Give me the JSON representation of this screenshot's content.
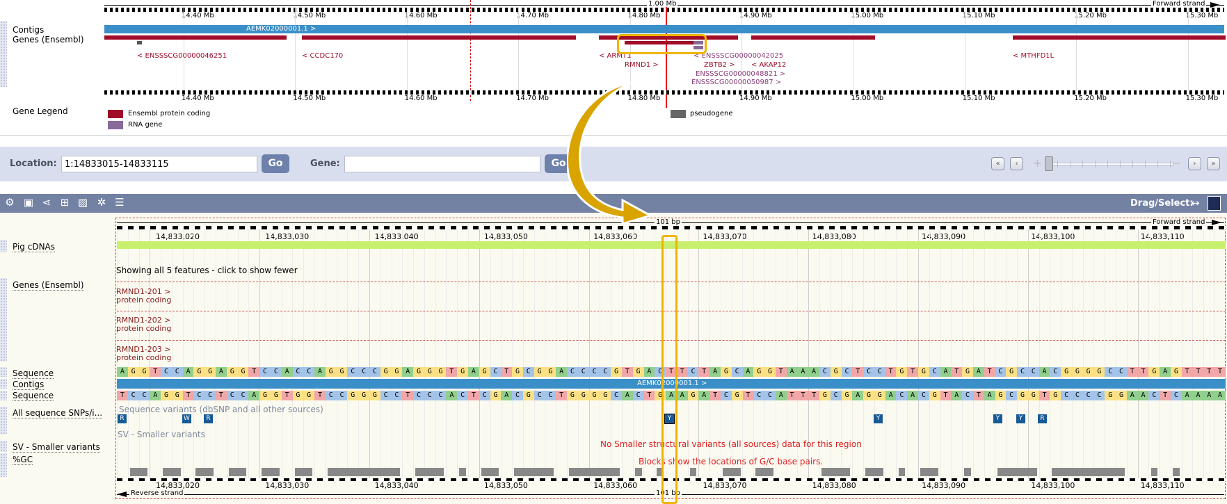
{
  "overview": {
    "scale_label": "1.00 Mb",
    "strand_label": "Forward strand",
    "ticks": [
      "14.40 Mb",
      "14.50 Mb",
      "14.60 Mb",
      "14.70 Mb",
      "14.80 Mb",
      "14.90 Mb",
      "15.00 Mb",
      "15.10 Mb",
      "15.20 Mb",
      "15.30 Mb"
    ],
    "tracks": {
      "contigs": "Contigs",
      "genes": "Genes (Ensembl)",
      "legend": "Gene Legend"
    },
    "contig_label": "AEMK02000001.1 >",
    "genes": [
      {
        "label": "< ENSSSCG00000046251",
        "cls": ""
      },
      {
        "label": "< CCDC170",
        "cls": ""
      },
      {
        "label": "< ARMT1",
        "cls": ""
      },
      {
        "label": "RMND1 >",
        "cls": ""
      },
      {
        "label": "< ENSSSCG00000042025",
        "cls": "p"
      },
      {
        "label": "ZBTB2 >",
        "cls": ""
      },
      {
        "label": "< AKAP12",
        "cls": ""
      },
      {
        "label": "ENSSSCG00000048821 >",
        "cls": "p"
      },
      {
        "label": "ENSSSCG00000050987 >",
        "cls": "p"
      },
      {
        "label": "< MTHFD1L",
        "cls": ""
      }
    ],
    "legend": {
      "protein_coding": "Ensembl protein coding",
      "rna_gene": "RNA gene",
      "pseudogene": "pseudogene"
    },
    "colors": {
      "protein_coding": "#a10d28",
      "rna_gene": "#8a6a99",
      "pseudogene": "#666666",
      "contig": "#3b8fc8"
    }
  },
  "location_bar": {
    "location_label": "Location:",
    "location_value": "1:14833015-14833115",
    "go_label": "Go",
    "gene_label": "Gene:",
    "gene_value": "",
    "nav_icons": [
      "first-icon",
      "prev-icon",
      "zoom-in-icon",
      "zoom-out-icon",
      "next-icon",
      "last-icon"
    ]
  },
  "detail": {
    "toolbar_icons": [
      "gear-icon",
      "export-icon",
      "share-icon",
      "resize-icon",
      "image-icon",
      "config-icon",
      "reset-icon"
    ],
    "drag_select_label": "Drag/Select:",
    "scale_label": "101 bp",
    "strand_label": "Forward strand",
    "reverse_label": "Reverse strand",
    "ticks": [
      "14,833,020",
      "14,833,030",
      "14,833,040",
      "14,833,050",
      "14,833,060",
      "14,833,070",
      "14,833,080",
      "14,833,090",
      "14,833,100",
      "14,833,110"
    ],
    "tracks": {
      "pig_cdnas": "Pig cDNAs",
      "genes": "Genes (Ensembl)",
      "sequence": "Sequence",
      "contigs": "Contigs",
      "sequence2": "Sequence",
      "snps": "All sequence SNPs/i...",
      "sv": "SV - Smaller variants",
      "gc": "%GC"
    },
    "feature_note": "Showing all 5 features - click to show fewer",
    "transcripts": [
      {
        "name": "RMND1-201 >",
        "biotype": "protein coding"
      },
      {
        "name": "RMND1-202 >",
        "biotype": "protein coding"
      },
      {
        "name": "RMND1-203 >",
        "biotype": "protein coding"
      }
    ],
    "forward_seq": "AGGTCCAGGAGGTCCACCAGGCCCGGAGGGTGAGCTGCGGACCCCGTGACTTCTAGCAGGTAAACGCTCCTGTGCATGATCGCCACGGGGCCTTGAGTTTT",
    "reverse_seq": "TCCAGGTCCTCCAGGTGGTCCGGGCCTCCCACTCGACGCCTGGGGCACTGAAGATCGTCCATTTGCGAGGACACGTACTAGCGGTGCCCCGGAACTCAAAA",
    "contig_label": "AEMK02000001.1 >",
    "snp_caption": "Sequence variants (dbSNP and all other sources)",
    "snps": [
      "R",
      "W",
      "R",
      "Y",
      "Y",
      "Y",
      "Y",
      "R"
    ],
    "sv_caption": "SV - Smaller variants",
    "sv_note": "No Smaller structural variants (all sources) data for this region",
    "gc_note": "Blocks show the locations of G/C base pairs.",
    "colors": {
      "A": "#90d08c",
      "C": "#a3c3e9",
      "G": "#fbe184",
      "T": "#f1a6a8",
      "snp": "#175a96",
      "highlight": "#f0b400",
      "cdna": "#c8f06e"
    }
  }
}
